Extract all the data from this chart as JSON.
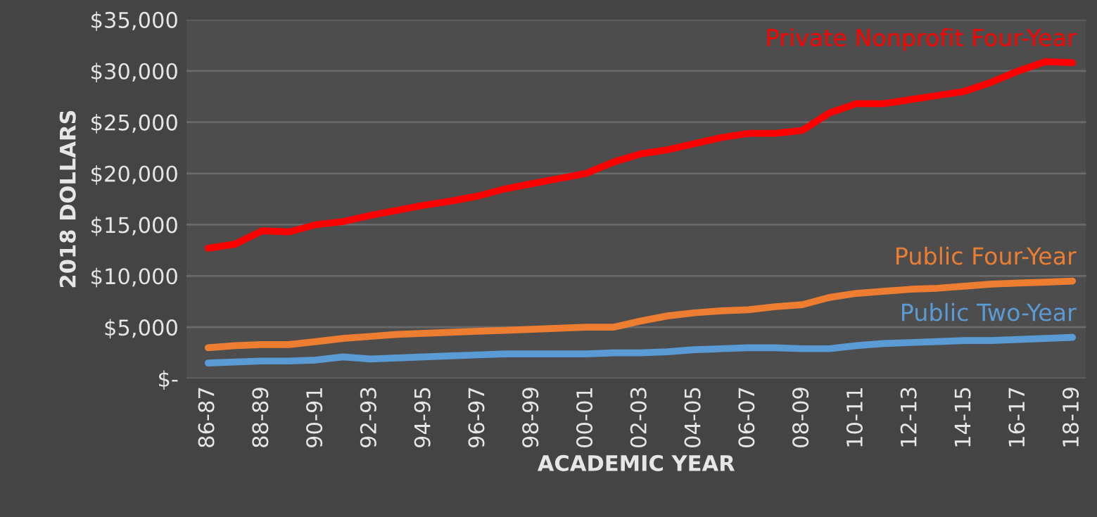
{
  "chart_data": {
    "type": "line",
    "xlabel": "ACADEMIC YEAR",
    "ylabel": "2018 DOLLARS",
    "categories": [
      "86-87",
      null,
      "88-89",
      null,
      "90-91",
      null,
      "92-93",
      null,
      "94-95",
      null,
      "96-97",
      null,
      "98-99",
      null,
      "00-01",
      null,
      "02-03",
      null,
      "04-05",
      null,
      "06-07",
      null,
      "08-09",
      null,
      "10-11",
      null,
      "12-13",
      null,
      "14-15",
      null,
      "16-17",
      null,
      "18-19"
    ],
    "series": [
      {
        "name": "Private Nonprofit Four-Year",
        "color": "#ff0000",
        "values": [
          12700,
          13100,
          14400,
          14300,
          15000,
          15300,
          15900,
          16400,
          16900,
          17300,
          17800,
          18500,
          19000,
          19500,
          20000,
          21100,
          21900,
          22300,
          22900,
          23500,
          23900,
          23900,
          24200,
          25900,
          26800,
          26800,
          27200,
          27600,
          28000,
          28900,
          30000,
          30900,
          30800
        ]
      },
      {
        "name": "Public Four-Year",
        "color": "#ed7d31",
        "values": [
          3000,
          3200,
          3300,
          3300,
          3600,
          3900,
          4100,
          4300,
          4400,
          4500,
          4600,
          4700,
          4800,
          4900,
          5000,
          5000,
          5600,
          6100,
          6400,
          6600,
          6700,
          7000,
          7200,
          7900,
          8300,
          8500,
          8700,
          8800,
          9000,
          9200,
          9300,
          9400,
          9500
        ]
      },
      {
        "name": "Public Two-Year",
        "color": "#5b9bd5",
        "values": [
          1500,
          1600,
          1700,
          1700,
          1800,
          2100,
          1900,
          2000,
          2100,
          2200,
          2300,
          2400,
          2400,
          2400,
          2400,
          2500,
          2500,
          2600,
          2800,
          2900,
          3000,
          3000,
          2900,
          2900,
          3200,
          3400,
          3500,
          3600,
          3700,
          3700,
          3800,
          3900,
          4000
        ]
      }
    ],
    "ylim": [
      0,
      35000
    ],
    "yticks": [
      {
        "value": 0,
        "label": "$-"
      },
      {
        "value": 5000,
        "label": "$5,000"
      },
      {
        "value": 10000,
        "label": "$10,000"
      },
      {
        "value": 15000,
        "label": "$15,000"
      },
      {
        "value": 20000,
        "label": "$20,000"
      },
      {
        "value": 25000,
        "label": "$25,000"
      },
      {
        "value": 30000,
        "label": "$30,000"
      },
      {
        "value": 35000,
        "label": "$35,000"
      }
    ],
    "grid": "y",
    "marker": "none",
    "line_style": "solid"
  }
}
